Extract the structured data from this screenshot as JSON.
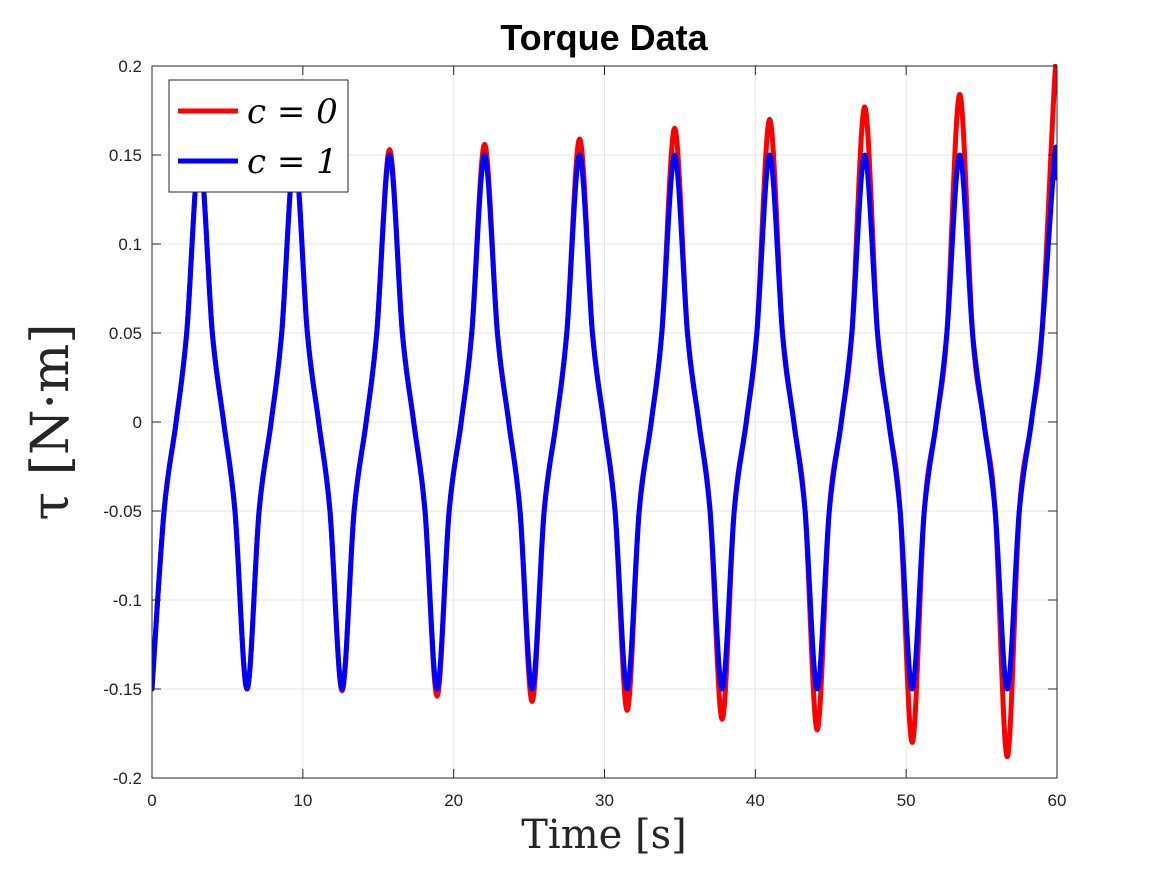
{
  "chart_data": {
    "type": "line",
    "title": "Torque Data",
    "xlabel": "Time [s]",
    "ylabel": "τ [N·m]",
    "xlim": [
      0,
      60
    ],
    "ylim": [
      -0.2,
      0.2
    ],
    "xticks": [
      0,
      10,
      20,
      30,
      40,
      50,
      60
    ],
    "xtick_labels": [
      "0",
      "10",
      "20",
      "30",
      "40",
      "50",
      "60"
    ],
    "yticks": [
      0.2,
      0.15,
      0.1,
      0.05,
      0,
      -0.05,
      -0.1,
      -0.15,
      -0.2
    ],
    "ytick_labels": [
      "0.2",
      "0.15",
      "0.1",
      "0.05",
      "0",
      "-0.05",
      "-0.1",
      "-0.15",
      "-0.2"
    ],
    "grid": true,
    "legend_position": "top-left",
    "series": [
      {
        "name": "c = 0",
        "color": "#ff0000",
        "x": [
          0,
          0.8,
          1.6,
          2.3,
          3.15,
          4.0,
          4.75,
          5.5,
          6.3,
          7.1,
          7.9,
          8.6,
          9.45,
          10.3,
          11.05,
          11.8,
          12.6,
          13.4,
          14.2,
          14.9,
          15.75,
          16.6,
          17.35,
          18.1,
          18.9,
          19.7,
          20.5,
          21.2,
          22.05,
          22.9,
          23.65,
          24.4,
          25.2,
          26.0,
          26.8,
          27.5,
          28.35,
          29.2,
          29.95,
          30.7,
          31.5,
          32.3,
          33.1,
          33.8,
          34.65,
          35.5,
          36.25,
          37.0,
          37.8,
          38.6,
          39.4,
          40.1,
          40.95,
          41.8,
          42.55,
          43.3,
          44.1,
          44.9,
          45.7,
          46.4,
          47.25,
          48.1,
          48.85,
          49.6,
          50.4,
          51.2,
          52.0,
          52.7,
          53.55,
          54.4,
          55.15,
          55.9,
          56.7,
          57.5,
          58.3,
          59.0,
          59.85,
          60.0
        ],
        "y": [
          -0.15,
          -0.05,
          0.0,
          0.05,
          0.15,
          0.05,
          0.0,
          -0.05,
          -0.15,
          -0.05,
          0.0,
          0.05,
          0.15,
          0.05,
          0.0,
          -0.05,
          -0.151,
          -0.05,
          0.0,
          0.05,
          0.153,
          0.05,
          0.0,
          -0.05,
          -0.154,
          -0.05,
          0.0,
          0.05,
          0.156,
          0.05,
          0.0,
          -0.05,
          -0.157,
          -0.05,
          0.0,
          0.05,
          0.159,
          0.05,
          0.0,
          -0.05,
          -0.162,
          -0.05,
          0.0,
          0.05,
          0.165,
          0.05,
          0.0,
          -0.05,
          -0.167,
          -0.05,
          0.0,
          0.05,
          0.17,
          0.05,
          0.0,
          -0.05,
          -0.173,
          -0.05,
          0.0,
          0.05,
          0.177,
          0.05,
          0.0,
          -0.05,
          -0.18,
          -0.05,
          0.0,
          0.05,
          0.184,
          0.05,
          0.0,
          -0.05,
          -0.188,
          -0.05,
          0.0,
          0.05,
          0.193,
          0.185
        ]
      },
      {
        "name": "c = 1",
        "color": "#0000ff",
        "x": [
          0,
          0.8,
          1.6,
          2.3,
          3.15,
          4.0,
          4.75,
          5.5,
          6.3,
          7.1,
          7.9,
          8.6,
          9.45,
          10.3,
          11.05,
          11.8,
          12.6,
          13.4,
          14.2,
          14.9,
          15.75,
          16.6,
          17.35,
          18.1,
          18.9,
          19.7,
          20.5,
          21.2,
          22.05,
          22.9,
          23.65,
          24.4,
          25.2,
          26.0,
          26.8,
          27.5,
          28.35,
          29.2,
          29.95,
          30.7,
          31.5,
          32.3,
          33.1,
          33.8,
          34.65,
          35.5,
          36.25,
          37.0,
          37.8,
          38.6,
          39.4,
          40.1,
          40.95,
          41.8,
          42.55,
          43.3,
          44.1,
          44.9,
          45.7,
          46.4,
          47.25,
          48.1,
          48.85,
          49.6,
          50.4,
          51.2,
          52.0,
          52.7,
          53.55,
          54.4,
          55.15,
          55.9,
          56.7,
          57.5,
          58.3,
          59.0,
          59.85,
          60.0
        ],
        "y": [
          -0.15,
          -0.05,
          0.0,
          0.05,
          0.15,
          0.05,
          0.0,
          -0.05,
          -0.15,
          -0.05,
          0.0,
          0.05,
          0.15,
          0.05,
          0.0,
          -0.05,
          -0.15,
          -0.05,
          0.0,
          0.05,
          0.15,
          0.05,
          0.0,
          -0.05,
          -0.15,
          -0.05,
          0.0,
          0.05,
          0.15,
          0.05,
          0.0,
          -0.05,
          -0.15,
          -0.05,
          0.0,
          0.05,
          0.15,
          0.05,
          0.0,
          -0.05,
          -0.15,
          -0.05,
          0.0,
          0.05,
          0.15,
          0.05,
          0.0,
          -0.05,
          -0.15,
          -0.05,
          0.0,
          0.05,
          0.15,
          0.05,
          0.0,
          -0.05,
          -0.15,
          -0.05,
          0.0,
          0.05,
          0.15,
          0.05,
          0.0,
          -0.05,
          -0.15,
          -0.05,
          0.0,
          0.05,
          0.15,
          0.05,
          0.0,
          -0.05,
          -0.15,
          -0.05,
          0.0,
          0.05,
          0.15,
          0.137
        ]
      }
    ]
  }
}
